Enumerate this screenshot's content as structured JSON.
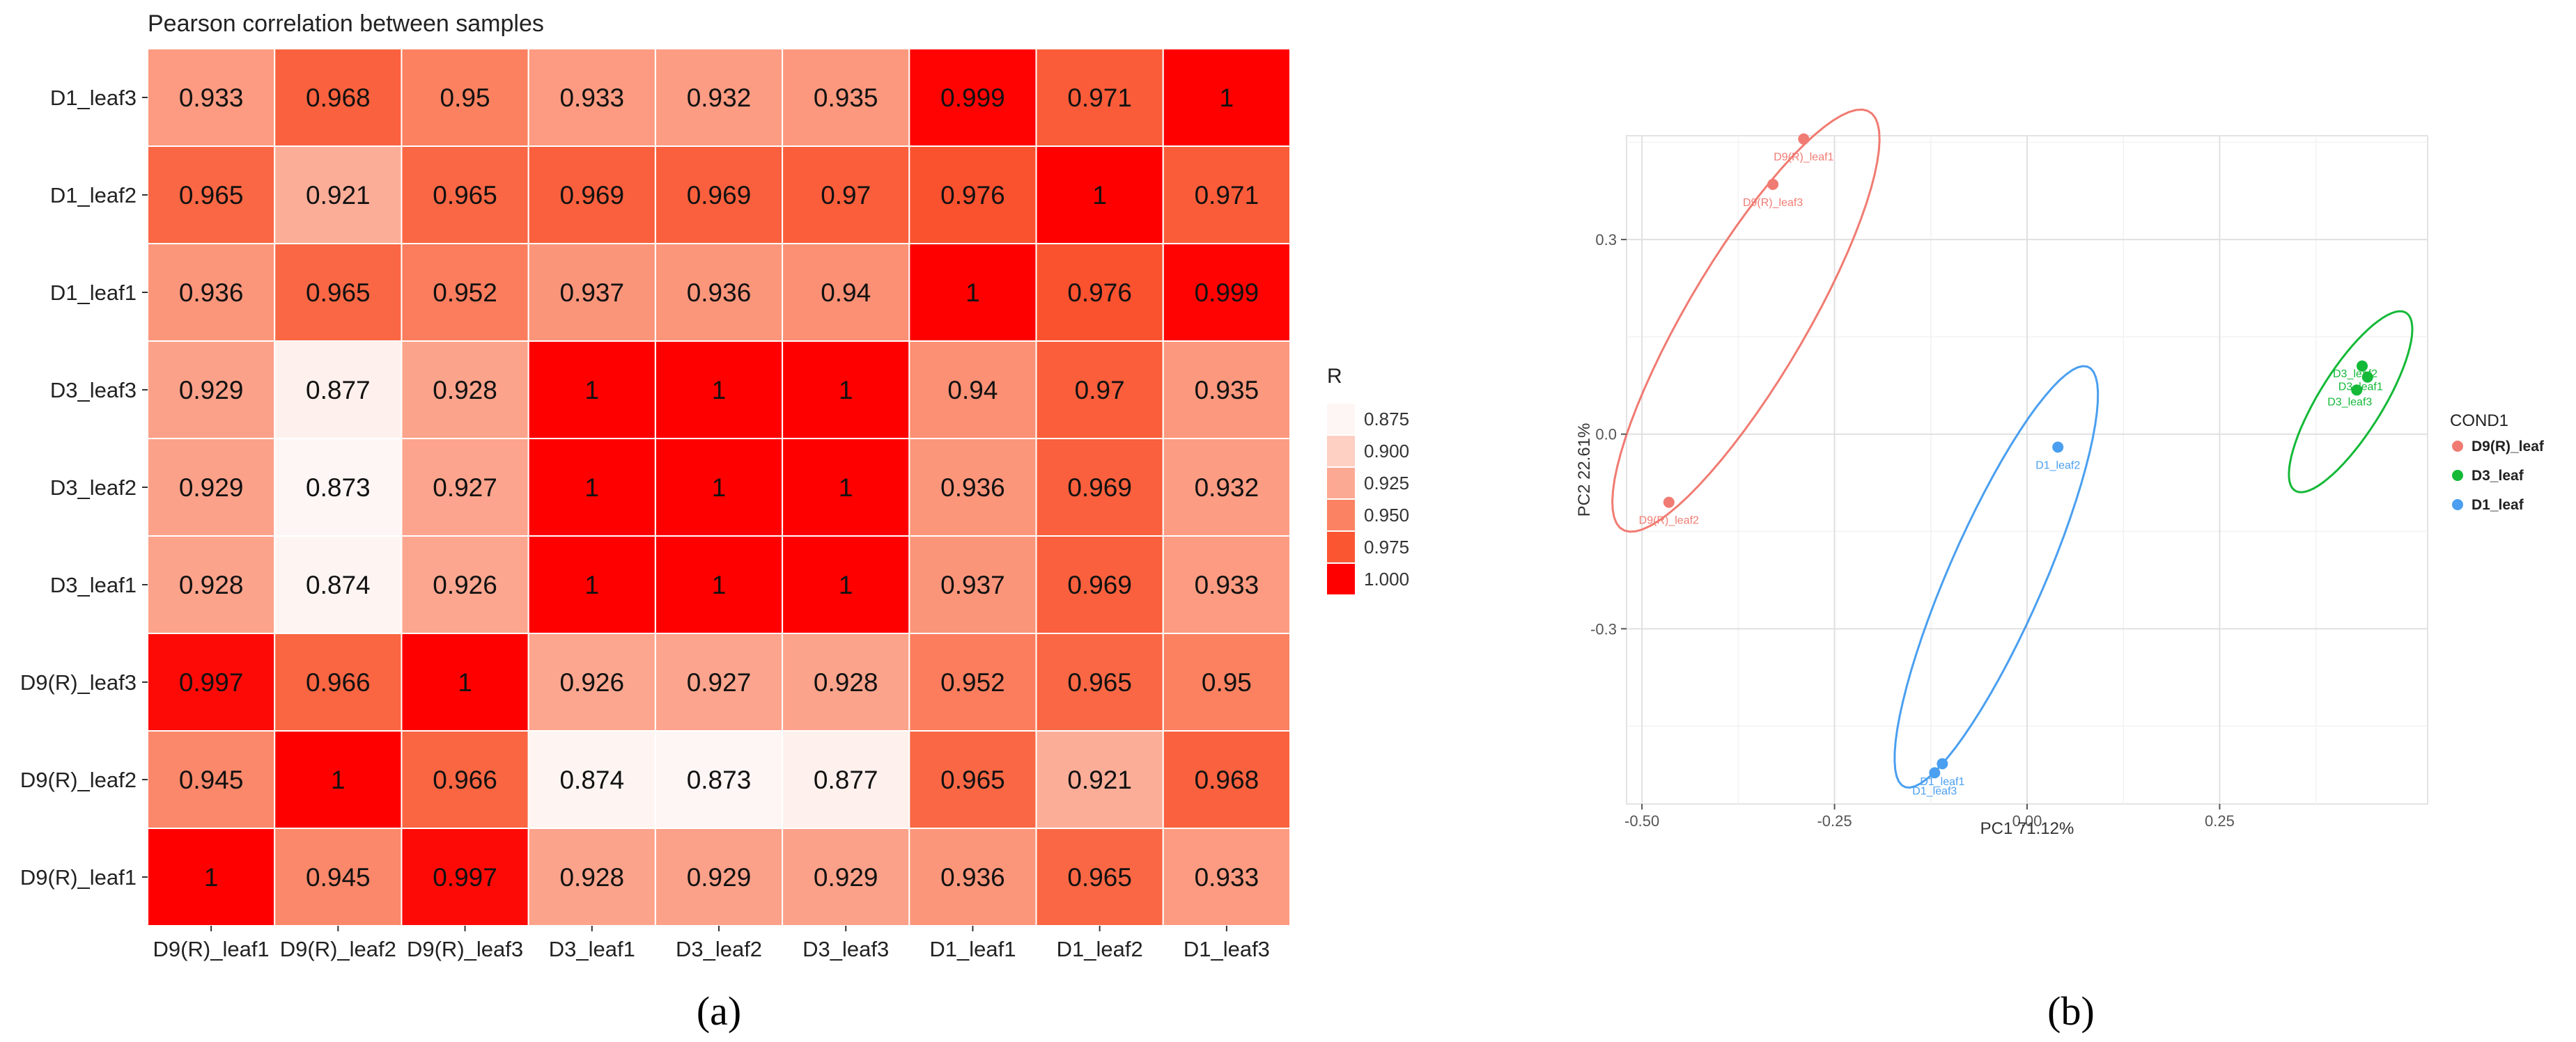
{
  "chart_data": [
    {
      "type": "heatmap",
      "panel_label": "(a)",
      "title": "Pearson correlation between samples",
      "x_labels": [
        "D9(R)_leaf1",
        "D9(R)_leaf2",
        "D9(R)_leaf3",
        "D3_leaf1",
        "D3_leaf2",
        "D3_leaf3",
        "D1_leaf1",
        "D1_leaf2",
        "D1_leaf3"
      ],
      "y_labels_top_to_bottom": [
        "D1_leaf3",
        "D1_leaf2",
        "D1_leaf1",
        "D3_leaf3",
        "D3_leaf2",
        "D3_leaf1",
        "D9(R)_leaf3",
        "D9(R)_leaf2",
        "D9(R)_leaf1"
      ],
      "cells": [
        [
          "0.933",
          "0.968",
          "0.95",
          "0.933",
          "0.932",
          "0.935",
          "0.999",
          "0.971",
          "1"
        ],
        [
          "0.965",
          "0.921",
          "0.965",
          "0.969",
          "0.969",
          "0.97",
          "0.976",
          "1",
          "0.971"
        ],
        [
          "0.936",
          "0.965",
          "0.952",
          "0.937",
          "0.936",
          "0.94",
          "1",
          "0.976",
          "0.999"
        ],
        [
          "0.929",
          "0.877",
          "0.928",
          "1",
          "1",
          "1",
          "0.94",
          "0.97",
          "0.935"
        ],
        [
          "0.929",
          "0.873",
          "0.927",
          "1",
          "1",
          "1",
          "0.936",
          "0.969",
          "0.932"
        ],
        [
          "0.928",
          "0.874",
          "0.926",
          "1",
          "1",
          "1",
          "0.937",
          "0.969",
          "0.933"
        ],
        [
          "0.997",
          "0.966",
          "1",
          "0.926",
          "0.927",
          "0.928",
          "0.952",
          "0.965",
          "0.95"
        ],
        [
          "0.945",
          "1",
          "0.966",
          "0.874",
          "0.873",
          "0.877",
          "0.965",
          "0.921",
          "0.968"
        ],
        [
          "1",
          "0.945",
          "0.997",
          "0.928",
          "0.929",
          "0.929",
          "0.936",
          "0.965",
          "0.933"
        ]
      ],
      "legend": {
        "title": "R",
        "labels": [
          "0.875",
          "0.900",
          "0.925",
          "0.950",
          "0.975",
          "1.000"
        ],
        "colors": [
          "#fef6f4",
          "#fdd0c3",
          "#fca993",
          "#fb8262",
          "#fa5632",
          "#ff0000"
        ]
      },
      "color_min": 0.873,
      "color_max": 1.0
    },
    {
      "type": "scatter",
      "panel_label": "(b)",
      "xlabel": "PC1  71.12%",
      "ylabel": "PC2  22.61%",
      "xlim": [
        -0.52,
        0.52
      ],
      "ylim": [
        -0.57,
        0.46
      ],
      "xticks": [
        -0.5,
        -0.25,
        0.0,
        0.25
      ],
      "xtick_labels": [
        "-0.50",
        "-0.25",
        "0.00",
        "0.25"
      ],
      "yticks": [
        -0.3,
        0.0,
        0.3
      ],
      "ytick_labels": [
        "-0.3",
        "0.0",
        "0.3"
      ],
      "legend": {
        "title": "COND1",
        "items": [
          {
            "label": "D9(R)_leaf",
            "color": "#f07b72"
          },
          {
            "label": "D3_leaf",
            "color": "#14b938"
          },
          {
            "label": "D1_leaf",
            "color": "#4a9ff0"
          }
        ]
      },
      "series": [
        {
          "name": "D9(R)_leaf",
          "color": "#f07b72",
          "points": [
            {
              "label": "D9(R)_leaf1",
              "x": -0.29,
              "y": 0.455
            },
            {
              "label": "D9(R)_leaf3",
              "x": -0.33,
              "y": 0.385
            },
            {
              "label": "D9(R)_leaf2",
              "x": -0.465,
              "y": -0.105
            }
          ],
          "ellipse": {
            "cx": -0.365,
            "cy": 0.175,
            "angle_deg": 64,
            "rx": 0.36,
            "ry": 0.08
          }
        },
        {
          "name": "D1_leaf",
          "color": "#4a9ff0",
          "points": [
            {
              "label": "D1_leaf2",
              "x": 0.04,
              "y": -0.02
            },
            {
              "label": "D1_leaf1",
              "x": -0.11,
              "y": -0.508
            },
            {
              "label": "D1_leaf3",
              "x": -0.12,
              "y": -0.522
            }
          ],
          "ellipse": {
            "cx": -0.04,
            "cy": -0.22,
            "angle_deg": 70,
            "rx": 0.345,
            "ry": 0.063
          }
        },
        {
          "name": "D3_leaf",
          "color": "#14b938",
          "points": [
            {
              "label": "D3_leaf2",
              "x": 0.435,
              "y": 0.105
            },
            {
              "label": "D3_leaf1",
              "x": 0.442,
              "y": 0.088
            },
            {
              "label": "D3_leaf3",
              "x": 0.428,
              "y": 0.068
            }
          ],
          "ellipse": {
            "cx": 0.42,
            "cy": 0.05,
            "angle_deg": 63,
            "rx": 0.155,
            "ry": 0.043
          }
        }
      ]
    }
  ]
}
